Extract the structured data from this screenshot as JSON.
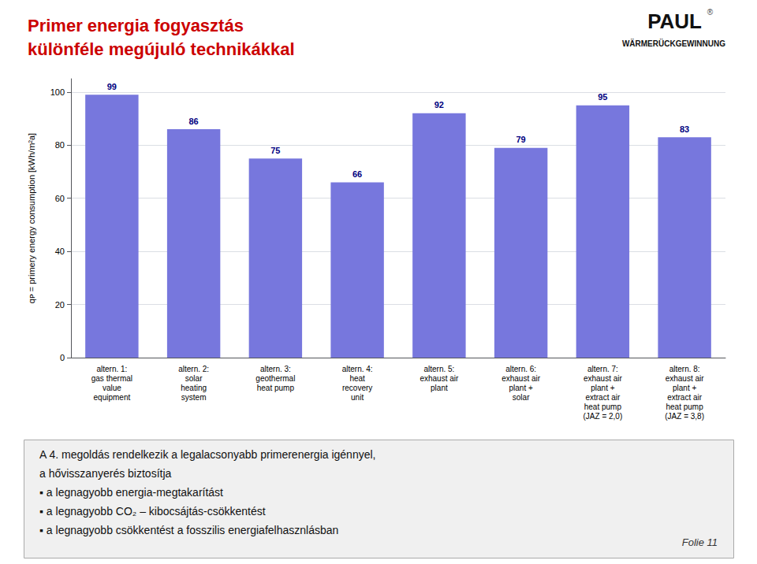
{
  "chart_data": {
    "type": "bar",
    "title": "Primer energia fogyasztás\nkülönféle megújuló technikákkal",
    "ylabel": "qᴘ = primery energy consumption [kWh/m²a]",
    "categories": [
      "altern. 1:\ngas thermal\nvalue\nequipment",
      "altern. 2:\nsolar\nheating\nsystem",
      "altern. 3:\ngeothermal\nheat pump",
      "altern. 4:\nheat\nrecovery\nunit",
      "altern. 5:\nexhaust air\nplant",
      "altern. 6:\nexhaust air\nplant +\nsolar",
      "altern. 7:\nexhaust air\nplant +\nextract air\nheat pump\n(JAZ = 2,0)",
      "altern. 8:\nexhaust air\nplant +\nextract air\nheat pump\n(JAZ = 3,8)"
    ],
    "values": [
      99,
      86,
      75,
      66,
      92,
      79,
      95,
      83
    ],
    "color": "#7777dd",
    "ylim": [
      0,
      105
    ],
    "yticks": [
      0,
      20,
      40,
      60,
      80,
      100
    ],
    "grid": true,
    "data_labels": true,
    "logo_texts": [
      "PAUL",
      "®",
      "WÄRMERÜCKGEWINNUNG"
    ],
    "annotations": [
      "A 4. megoldás rendelkezik a legalacsonyabb primerenergia igénnyel,",
      "a hővisszanyerés biztosítja",
      "▪ a legnagyobb energia-megtakarítást",
      "▪ a legnagyobb CO₂ – kibocsájtás-csökkentést",
      "▪ a legnagyobb csökkentést a fosszilis energiafelhasznlásban"
    ],
    "footer": "Folie 11"
  }
}
